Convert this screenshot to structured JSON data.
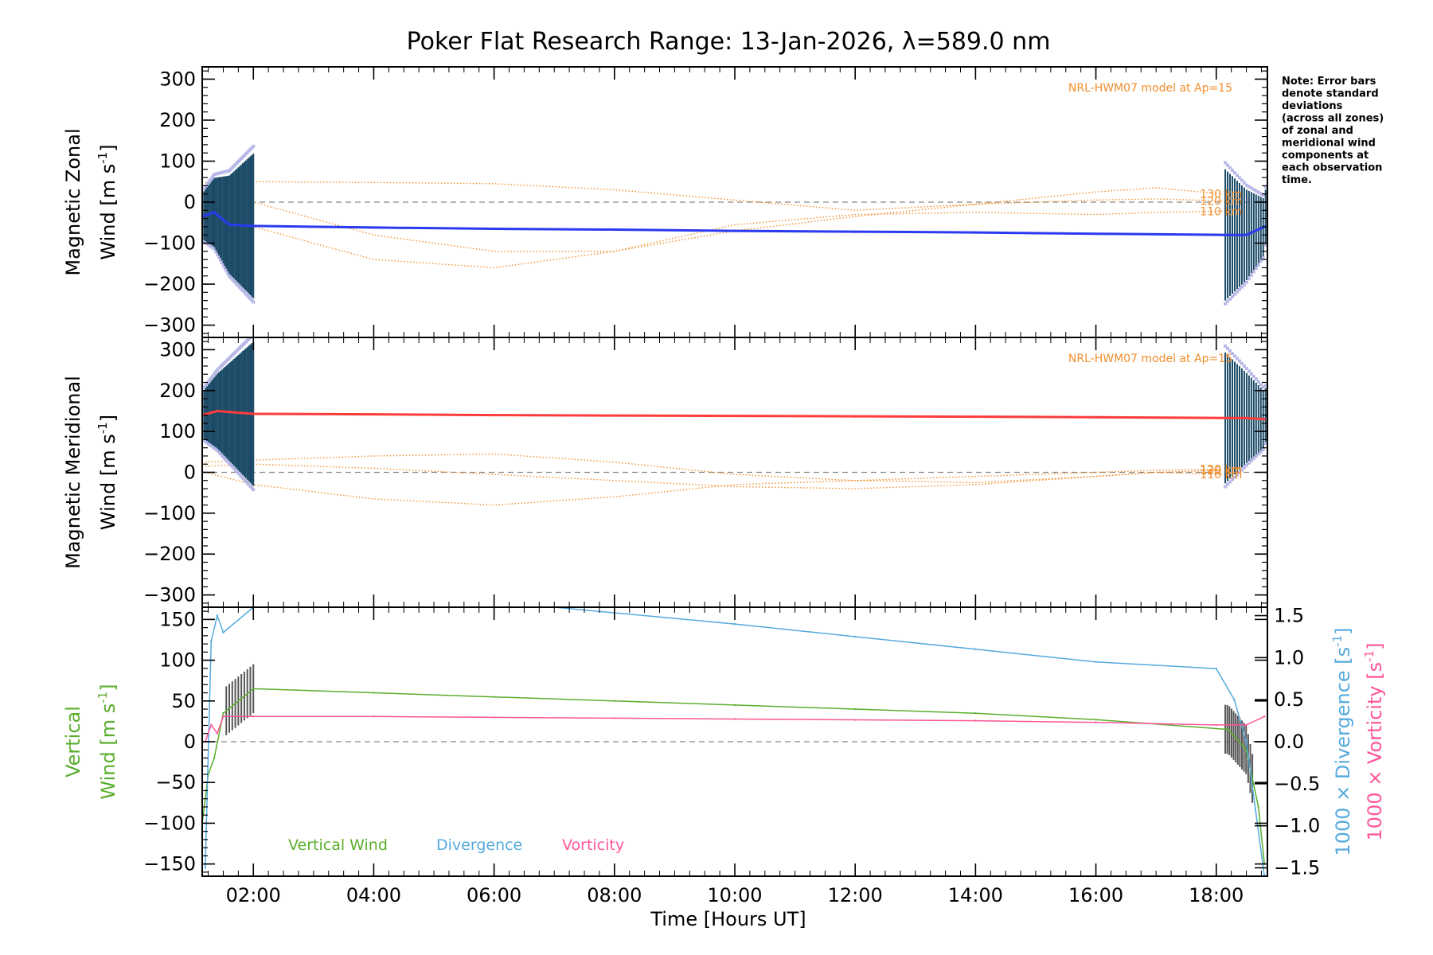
{
  "chart_data": {
    "type": "line",
    "title": "Poker Flat Research Range: 13-Jan-2026, λ=589.0 nm",
    "note": [
      "Note: Error bars",
      "denote standard",
      "deviations",
      "(across all zones)",
      "of zonal and",
      "meridional wind",
      "components at",
      "each observation",
      "time."
    ],
    "xlabel": "Time [Hours UT]",
    "xlim": [
      1.15,
      18.85
    ],
    "x_ticks": [
      {
        "v": 2,
        "label": "02:00"
      },
      {
        "v": 4,
        "label": "04:00"
      },
      {
        "v": 6,
        "label": "06:00"
      },
      {
        "v": 8,
        "label": "08:00"
      },
      {
        "v": 10,
        "label": "10:00"
      },
      {
        "v": 12,
        "label": "12:00"
      },
      {
        "v": 14,
        "label": "14:00"
      },
      {
        "v": 16,
        "label": "16:00"
      },
      {
        "v": 18,
        "label": "18:00"
      }
    ],
    "colors": {
      "zonal": "#2a3af0",
      "meridional": "#ff3c3c",
      "errorbar": "#1a4a66",
      "model": "#f28e2b",
      "vertical": "#5aae2e",
      "divergence": "#55aadd",
      "vorticity": "#ff5599",
      "zone": "#b8b8e8",
      "grey_err": "#555555",
      "zero_line": "#888888"
    },
    "panels": [
      {
        "id": "zonal",
        "ylabel_line1": "Magnetic Zonal",
        "ylabel_line2": "Wind [m s",
        "ylabel_sup": "-1",
        "ylabel_close": "]",
        "ylim": [
          -330,
          330
        ],
        "y_ticks": [
          300,
          200,
          100,
          0,
          -100,
          -200,
          -300
        ],
        "y_tick_labels": [
          "300",
          "200",
          "100",
          "0",
          "−100",
          "−200",
          "−300"
        ],
        "model_label": "NRL-HWM07 model at Ap=15",
        "model_series": [
          {
            "name": "130 km",
            "x": [
              1.2,
              2,
              4,
              6,
              8,
              10,
              12,
              14,
              16,
              17,
              18.1
            ],
            "y": [
              48,
              50,
              48,
              45,
              30,
              5,
              -20,
              -5,
              25,
              35,
              20
            ]
          },
          {
            "name": "120 km",
            "x": [
              1.2,
              2,
              4,
              6,
              8,
              10,
              12,
              14,
              16,
              17,
              18.1
            ],
            "y": [
              25,
              0,
              -80,
              -120,
              -120,
              -70,
              -35,
              -5,
              5,
              8,
              3
            ]
          },
          {
            "name": "110 km",
            "x": [
              1.2,
              2,
              4,
              6,
              8,
              10,
              12,
              14,
              16,
              17,
              18.1
            ],
            "y": [
              -40,
              -60,
              -140,
              -160,
              -120,
              -55,
              -30,
              -25,
              -30,
              -25,
              -22
            ]
          }
        ],
        "series": [
          {
            "name": "Magnetic Zonal Wind",
            "x": [
              1.15,
              1.35,
              1.6,
              2.0,
              4.0,
              6.0,
              8.0,
              10.0,
              12.0,
              14.0,
              16.0,
              18.2,
              18.5,
              18.8
            ],
            "y": [
              -35,
              -25,
              -55,
              -58,
              -62,
              -65,
              -67,
              -70,
              -72,
              -74,
              -77,
              -80,
              -80,
              -60
            ]
          }
        ]
      },
      {
        "id": "meridional",
        "ylabel_line1": "Magnetic Meridional",
        "ylabel_line2": "Wind [m s",
        "ylabel_sup": "-1",
        "ylabel_close": "]",
        "ylim": [
          -330,
          330
        ],
        "y_ticks": [
          300,
          200,
          100,
          0,
          -100,
          -200,
          -300
        ],
        "y_tick_labels": [
          "300",
          "200",
          "100",
          "0",
          "−100",
          "−200",
          "−300"
        ],
        "model_label": "NRL-HWM07 model at Ap=15",
        "model_series": [
          {
            "name": "130 km",
            "x": [
              1.2,
              2,
              4,
              6,
              8,
              10,
              12,
              14,
              16,
              17,
              18.1
            ],
            "y": [
              15,
              20,
              10,
              -5,
              -20,
              -35,
              -40,
              -30,
              -10,
              0,
              5
            ]
          },
          {
            "name": "120 km",
            "x": [
              1.2,
              2,
              4,
              6,
              8,
              10,
              12,
              14,
              16,
              17,
              18.1
            ],
            "y": [
              25,
              30,
              40,
              45,
              25,
              -5,
              -20,
              -10,
              0,
              5,
              8
            ]
          },
          {
            "name": "110 km",
            "x": [
              1.2,
              2,
              4,
              6,
              8,
              10,
              12,
              14,
              16,
              17,
              18.1
            ],
            "y": [
              0,
              -30,
              -65,
              -80,
              -60,
              -30,
              -20,
              -25,
              -10,
              0,
              -5
            ]
          }
        ],
        "series": [
          {
            "name": "Magnetic Meridional Wind",
            "x": [
              1.15,
              1.4,
              2.0,
              4.0,
              6.0,
              8.0,
              10.0,
              12.0,
              14.0,
              16.0,
              18.2,
              18.5,
              18.8
            ],
            "y": [
              140,
              150,
              143,
              142,
              140,
              139,
              138,
              137,
              136,
              135,
              133,
              133,
              130
            ]
          }
        ]
      },
      {
        "id": "vertical",
        "ylabel_line1": "Vertical",
        "ylabel_line2": "Wind [m s",
        "ylabel_sup": "-1",
        "ylabel_close": "]",
        "ylim": [
          -165,
          165
        ],
        "y_ticks": [
          150,
          100,
          50,
          0,
          -50,
          -100,
          -150
        ],
        "y_tick_labels": [
          "150",
          "100",
          "50",
          "0",
          "−50",
          "−100",
          "−150"
        ],
        "right_ylim": [
          -1.6,
          1.6
        ],
        "right_ticks": [
          1.5,
          1.0,
          0.5,
          0.0,
          -0.5,
          -1.0,
          -1.5
        ],
        "right_tick_labels": [
          "1.5",
          "1.0",
          "0.5",
          "0.0",
          "−0.5",
          "−1.0",
          "−1.5"
        ],
        "right_label1": "1000 × Divergence [s",
        "right_label2": "1000 × Vorticity [s",
        "right_sup": "-1",
        "right_close": "]",
        "legend": [
          "Vertical Wind",
          "Divergence",
          "Vorticity"
        ],
        "series": [
          {
            "name": "Vertical Wind",
            "axis": "left",
            "x": [
              1.15,
              1.25,
              1.35,
              1.5,
              2.0,
              4.0,
              6.0,
              8.0,
              10.0,
              12.0,
              14.0,
              16.0,
              18.2,
              18.5,
              18.7,
              18.8
            ],
            "y": [
              -100,
              -40,
              -20,
              35,
              65,
              60,
              55,
              50,
              45,
              40,
              35,
              27,
              15,
              -10,
              -80,
              -150
            ]
          },
          {
            "name": "Divergence",
            "axis": "right",
            "x": [
              1.2,
              1.3,
              1.4,
              1.5,
              2.0,
              7.0,
              10.0,
              12.0,
              14.0,
              16.0,
              18.0,
              18.3,
              18.5,
              18.65,
              18.8
            ],
            "y": [
              -1.5,
              1.2,
              1.5,
              1.3,
              1.6,
              1.6,
              1.4,
              1.25,
              1.1,
              0.95,
              0.87,
              0.5,
              0.0,
              -0.8,
              -1.6
            ]
          },
          {
            "name": "Vorticity",
            "axis": "right",
            "x": [
              1.2,
              1.3,
              1.4,
              1.5,
              2.0,
              4.0,
              6.0,
              8.0,
              10.0,
              12.0,
              14.0,
              16.0,
              18.0,
              18.3,
              18.5,
              18.8
            ],
            "y": [
              0.0,
              0.2,
              0.1,
              0.3,
              0.3,
              0.3,
              0.29,
              0.28,
              0.27,
              0.26,
              0.25,
              0.23,
              0.2,
              0.2,
              0.2,
              0.3
            ]
          }
        ]
      }
    ]
  }
}
